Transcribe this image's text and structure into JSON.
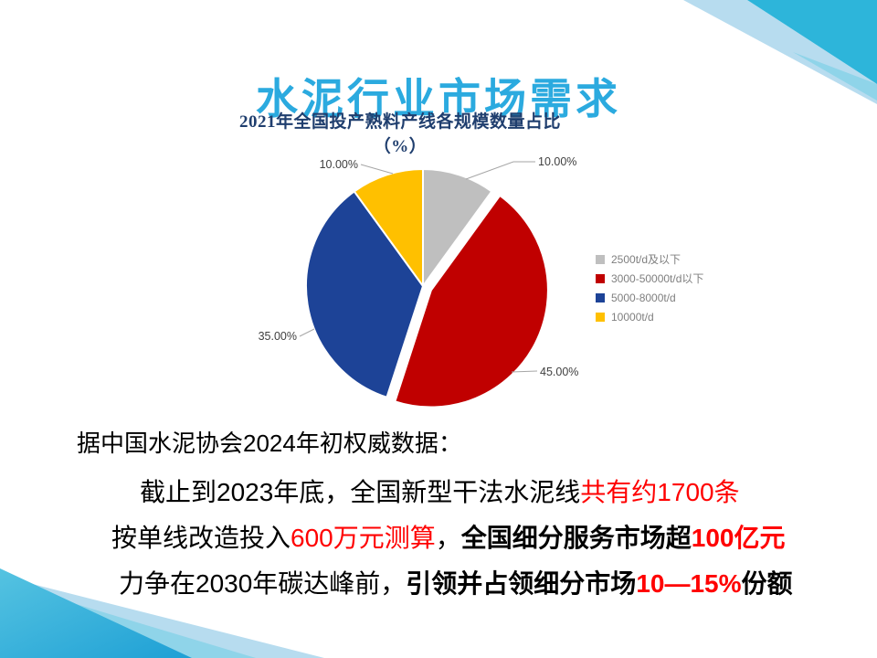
{
  "slide_title": "水泥行业市场需求",
  "colors": {
    "title_cyan": "#2BAADF",
    "chart_title_navy": "#1F3E6E",
    "body_text": "#000000",
    "highlight_red": "#FF0000",
    "label_gray": "#404040",
    "legend_text_gray": "#7f7f7f",
    "decor_cyan": "#2DB5DA",
    "decor_cyan_medium": "#8FD4E9",
    "decor_light_blue": "#B7DCEF"
  },
  "chart_data": {
    "type": "pie",
    "title": "2021年全国投产熟料产线各规模数量占比（%）",
    "unit": "%",
    "legend_position": "right",
    "grid": false,
    "slices": [
      {
        "label": "2500t/d及以下",
        "value": 10.0,
        "display": "10.00%",
        "color": "#BFBFBF",
        "exploded": false
      },
      {
        "label": "3000-50000t/d以下",
        "value": 45.0,
        "display": "45.00%",
        "color": "#C00000",
        "exploded": true
      },
      {
        "label": "5000-8000t/d",
        "value": 35.0,
        "display": "35.00%",
        "color": "#1D4397",
        "exploded": false
      },
      {
        "label": "10000t/d",
        "value": 10.0,
        "display": "10.00%",
        "color": "#FFC000",
        "exploded": false
      }
    ]
  },
  "body": {
    "lines": [
      {
        "segments": [
          {
            "text": "据中国水泥协会2024年初权威数据：",
            "red": false,
            "bold": false
          }
        ]
      },
      {
        "segments": [
          {
            "text": "截止到2023年底，全国新型干法水泥线",
            "red": false,
            "bold": false
          },
          {
            "text": "共有约1700条",
            "red": true,
            "bold": false
          }
        ]
      },
      {
        "segments": [
          {
            "text": "按单线改造投入",
            "red": false,
            "bold": false
          },
          {
            "text": "600万元测算",
            "red": true,
            "bold": false
          },
          {
            "text": "，",
            "red": false,
            "bold": false
          },
          {
            "text": "全国细分服务市场超",
            "red": false,
            "bold": true
          },
          {
            "text": "100亿元",
            "red": true,
            "bold": true
          }
        ]
      },
      {
        "segments": [
          {
            "text": "力争在2030年碳达峰前，",
            "red": false,
            "bold": false
          },
          {
            "text": "引领并占领细分市场",
            "red": false,
            "bold": true
          },
          {
            "text": "10—15%",
            "red": true,
            "bold": true
          },
          {
            "text": "份额",
            "red": false,
            "bold": true
          }
        ]
      }
    ]
  }
}
